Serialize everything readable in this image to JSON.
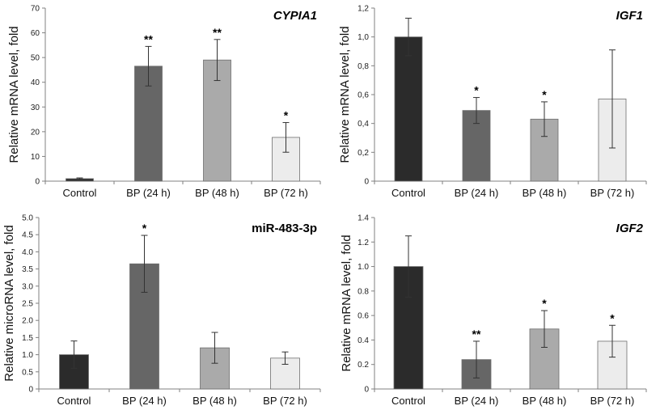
{
  "chart_data": [
    {
      "type": "bar",
      "title": "CYPIA1",
      "title_italic": true,
      "ylabel": "Relative mRNA level, fold",
      "categories": [
        "Control",
        "BP (24 h)",
        "BP (48 h)",
        "BP (72 h)"
      ],
      "values": [
        1.0,
        46.5,
        49.0,
        17.7
      ],
      "errors": [
        0.3,
        8.0,
        8.3,
        6.0
      ],
      "significance": [
        "",
        "**",
        "**",
        "*"
      ],
      "ylim": [
        0,
        70
      ],
      "ytick_labels": [
        "0",
        "10",
        "20",
        "30",
        "40",
        "50",
        "60",
        "70"
      ],
      "ytick_values": [
        0,
        10,
        20,
        30,
        40,
        50,
        60,
        70
      ],
      "bar_colors": [
        "#2b2b2b",
        "#666666",
        "#aaaaaa",
        "#ececec"
      ]
    },
    {
      "type": "bar",
      "title": "IGF1",
      "title_italic": true,
      "ylabel": "Relative mRNA level, fold",
      "categories": [
        "Control",
        "BP (24 h)",
        "BP (48 h)",
        "BP (72 h)"
      ],
      "values": [
        1.0,
        0.49,
        0.43,
        0.57
      ],
      "errors": [
        0.13,
        0.09,
        0.12,
        0.34
      ],
      "significance": [
        "",
        "*",
        "*",
        ""
      ],
      "ylim": [
        0,
        1.2
      ],
      "ytick_labels": [
        "0",
        "0,2",
        "0,4",
        "0,6",
        "0,8",
        "1,0",
        "1,2"
      ],
      "ytick_values": [
        0,
        0.2,
        0.4,
        0.6,
        0.8,
        1.0,
        1.2
      ],
      "bar_colors": [
        "#2b2b2b",
        "#666666",
        "#aaaaaa",
        "#ececec"
      ]
    },
    {
      "type": "bar",
      "title": "miR-483-3p",
      "title_italic": false,
      "ylabel": "Relative microRNA level, fold",
      "categories": [
        "Control",
        "BP (24 h)",
        "BP (48 h)",
        "BP (72 h)"
      ],
      "values": [
        1.0,
        3.65,
        1.2,
        0.9
      ],
      "errors": [
        0.4,
        0.83,
        0.45,
        0.18
      ],
      "significance": [
        "",
        "*",
        "",
        ""
      ],
      "ylim": [
        0,
        5.0
      ],
      "ytick_labels": [
        "0",
        "0.5",
        "1.0",
        "1.5",
        "2.0",
        "2.5",
        "3.0",
        "3.5",
        "4.0",
        "4.5",
        "5.0"
      ],
      "ytick_values": [
        0,
        0.5,
        1.0,
        1.5,
        2.0,
        2.5,
        3.0,
        3.5,
        4.0,
        4.5,
        5.0
      ],
      "bar_colors": [
        "#2b2b2b",
        "#666666",
        "#aaaaaa",
        "#ececec"
      ]
    },
    {
      "type": "bar",
      "title": "IGF2",
      "title_italic": true,
      "ylabel": "Relative mRNA level, fold",
      "categories": [
        "Control",
        "BP (24 h)",
        "BP (48 h)",
        "BP (72 h)"
      ],
      "values": [
        1.0,
        0.24,
        0.49,
        0.39
      ],
      "errors": [
        0.25,
        0.15,
        0.15,
        0.13
      ],
      "significance": [
        "",
        "**",
        "*",
        "*"
      ],
      "ylim": [
        0,
        1.4
      ],
      "ytick_labels": [
        "0",
        "0.2",
        "0.4",
        "0.6",
        "0.8",
        "1.0",
        "1.2",
        "1.4"
      ],
      "ytick_values": [
        0,
        0.2,
        0.4,
        0.6,
        0.8,
        1.0,
        1.2,
        1.4
      ],
      "bar_colors": [
        "#2b2b2b",
        "#666666",
        "#aaaaaa",
        "#ececec"
      ]
    }
  ]
}
